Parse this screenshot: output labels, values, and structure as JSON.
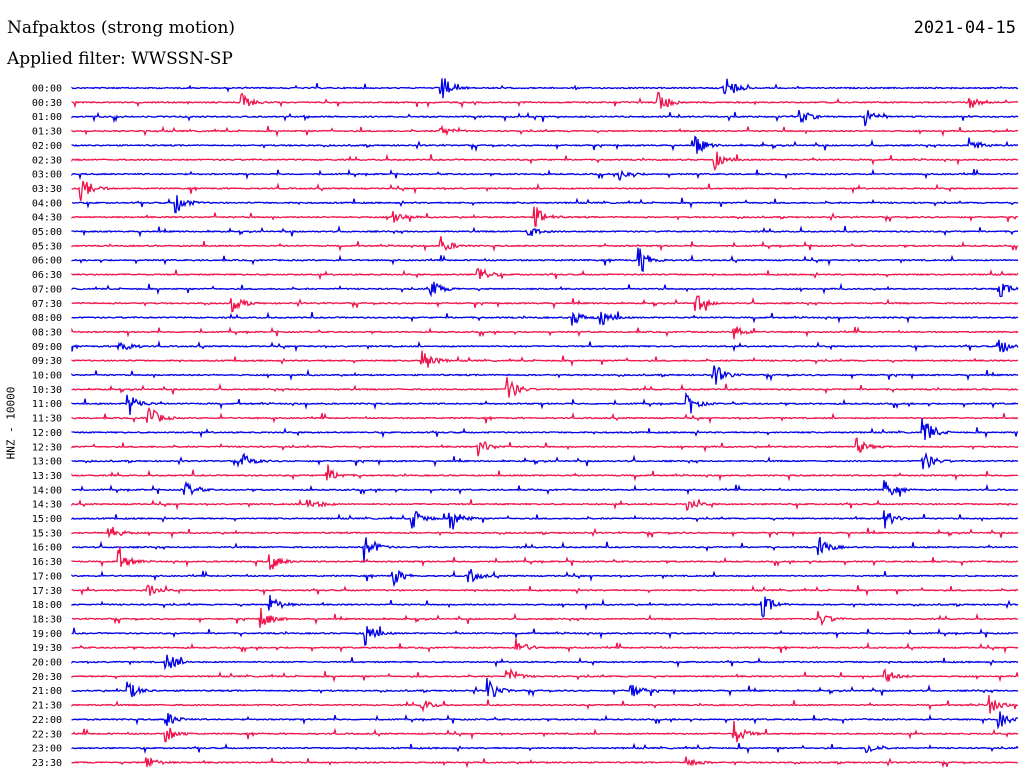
{
  "header": {
    "station_title": "Nafpaktos (strong motion)",
    "date": "2021-04-15",
    "filter_label": "Applied filter: WWSSN-SP"
  },
  "colors": {
    "trace_even": "#0000e6",
    "trace_odd": "#f0134a",
    "background": "#ffffff"
  },
  "chart_data": {
    "type": "line",
    "subtype": "helicorder",
    "ylabel": "HNZ - 10000",
    "tick_labels": [
      "00:00",
      "00:30",
      "01:00",
      "01:30",
      "02:00",
      "02:30",
      "03:00",
      "03:30",
      "04:00",
      "04:30",
      "05:00",
      "05:30",
      "06:00",
      "06:30",
      "07:00",
      "07:30",
      "08:00",
      "08:30",
      "09:00",
      "09:30",
      "10:00",
      "10:30",
      "11:00",
      "11:30",
      "12:00",
      "12:30",
      "13:00",
      "13:30",
      "14:00",
      "14:30",
      "15:00",
      "15:30",
      "16:00",
      "16:30",
      "17:00",
      "17:30",
      "18:00",
      "18:30",
      "19:00",
      "19:30",
      "20:00",
      "20:30",
      "21:00",
      "21:30",
      "22:00",
      "22:30",
      "23:00",
      "23:30"
    ],
    "trace_minutes": 30,
    "events": [
      {
        "row": 0,
        "t": 0.39,
        "amp": 1.0
      },
      {
        "row": 0,
        "t": 0.69,
        "amp": 0.9
      },
      {
        "row": 1,
        "t": 0.18,
        "amp": 0.5
      },
      {
        "row": 1,
        "t": 0.62,
        "amp": 0.8
      },
      {
        "row": 1,
        "t": 0.95,
        "amp": 0.4
      },
      {
        "row": 2,
        "t": 0.77,
        "amp": 0.5
      },
      {
        "row": 2,
        "t": 0.84,
        "amp": 0.6
      },
      {
        "row": 3,
        "t": 0.39,
        "amp": 0.4
      },
      {
        "row": 4,
        "t": 0.66,
        "amp": 0.6
      },
      {
        "row": 4,
        "t": 0.95,
        "amp": 0.5
      },
      {
        "row": 5,
        "t": 0.68,
        "amp": 0.6
      },
      {
        "row": 6,
        "t": 0.58,
        "amp": 0.4
      },
      {
        "row": 7,
        "t": 0.01,
        "amp": 0.9
      },
      {
        "row": 8,
        "t": 0.11,
        "amp": 0.7
      },
      {
        "row": 9,
        "t": 0.34,
        "amp": 0.5
      },
      {
        "row": 9,
        "t": 0.49,
        "amp": 0.7
      },
      {
        "row": 10,
        "t": 0.48,
        "amp": 0.5
      },
      {
        "row": 11,
        "t": 0.39,
        "amp": 0.6
      },
      {
        "row": 12,
        "t": 0.6,
        "amp": 1.0
      },
      {
        "row": 13,
        "t": 0.43,
        "amp": 0.6
      },
      {
        "row": 14,
        "t": 0.38,
        "amp": 0.6
      },
      {
        "row": 14,
        "t": 0.98,
        "amp": 0.6
      },
      {
        "row": 15,
        "t": 0.17,
        "amp": 0.5
      },
      {
        "row": 15,
        "t": 0.66,
        "amp": 0.6
      },
      {
        "row": 16,
        "t": 0.53,
        "amp": 0.5
      },
      {
        "row": 16,
        "t": 0.56,
        "amp": 0.6
      },
      {
        "row": 17,
        "t": 0.7,
        "amp": 0.5
      },
      {
        "row": 18,
        "t": 0.05,
        "amp": 0.6
      },
      {
        "row": 18,
        "t": 0.98,
        "amp": 0.6
      },
      {
        "row": 19,
        "t": 0.37,
        "amp": 0.9
      },
      {
        "row": 20,
        "t": 0.68,
        "amp": 0.7
      },
      {
        "row": 21,
        "t": 0.46,
        "amp": 0.9
      },
      {
        "row": 22,
        "t": 0.06,
        "amp": 0.8
      },
      {
        "row": 22,
        "t": 0.65,
        "amp": 0.7
      },
      {
        "row": 23,
        "t": 0.08,
        "amp": 1.0
      },
      {
        "row": 24,
        "t": 0.9,
        "amp": 1.0
      },
      {
        "row": 25,
        "t": 0.43,
        "amp": 0.6
      },
      {
        "row": 25,
        "t": 0.83,
        "amp": 0.5
      },
      {
        "row": 26,
        "t": 0.18,
        "amp": 0.5
      },
      {
        "row": 26,
        "t": 0.9,
        "amp": 0.7
      },
      {
        "row": 27,
        "t": 0.27,
        "amp": 0.5
      },
      {
        "row": 28,
        "t": 0.12,
        "amp": 0.5
      },
      {
        "row": 28,
        "t": 0.86,
        "amp": 0.6
      },
      {
        "row": 29,
        "t": 0.25,
        "amp": 0.6
      },
      {
        "row": 29,
        "t": 0.65,
        "amp": 0.5
      },
      {
        "row": 30,
        "t": 0.36,
        "amp": 0.8
      },
      {
        "row": 30,
        "t": 0.4,
        "amp": 0.9
      },
      {
        "row": 30,
        "t": 0.86,
        "amp": 0.6
      },
      {
        "row": 31,
        "t": 0.04,
        "amp": 0.5
      },
      {
        "row": 32,
        "t": 0.31,
        "amp": 1.0
      },
      {
        "row": 32,
        "t": 0.79,
        "amp": 0.7
      },
      {
        "row": 33,
        "t": 0.05,
        "amp": 0.7
      },
      {
        "row": 33,
        "t": 0.21,
        "amp": 0.6
      },
      {
        "row": 34,
        "t": 0.34,
        "amp": 0.6
      },
      {
        "row": 34,
        "t": 0.42,
        "amp": 0.5
      },
      {
        "row": 35,
        "t": 0.08,
        "amp": 0.5
      },
      {
        "row": 36,
        "t": 0.21,
        "amp": 0.6
      },
      {
        "row": 36,
        "t": 0.73,
        "amp": 0.8
      },
      {
        "row": 37,
        "t": 0.2,
        "amp": 0.7
      },
      {
        "row": 37,
        "t": 0.79,
        "amp": 0.5
      },
      {
        "row": 38,
        "t": 0.31,
        "amp": 0.9
      },
      {
        "row": 39,
        "t": 0.47,
        "amp": 0.6
      },
      {
        "row": 40,
        "t": 0.1,
        "amp": 0.7
      },
      {
        "row": 41,
        "t": 0.46,
        "amp": 0.6
      },
      {
        "row": 41,
        "t": 0.86,
        "amp": 0.5
      },
      {
        "row": 42,
        "t": 0.06,
        "amp": 0.6
      },
      {
        "row": 42,
        "t": 0.44,
        "amp": 0.8
      },
      {
        "row": 42,
        "t": 0.59,
        "amp": 0.6
      },
      {
        "row": 43,
        "t": 0.37,
        "amp": 0.4
      },
      {
        "row": 43,
        "t": 0.97,
        "amp": 0.6
      },
      {
        "row": 44,
        "t": 0.1,
        "amp": 0.5
      },
      {
        "row": 44,
        "t": 0.98,
        "amp": 0.6
      },
      {
        "row": 45,
        "t": 0.1,
        "amp": 0.5
      },
      {
        "row": 45,
        "t": 0.7,
        "amp": 0.8
      },
      {
        "row": 46,
        "t": 0.84,
        "amp": 0.4
      },
      {
        "row": 47,
        "t": 0.08,
        "amp": 0.4
      },
      {
        "row": 47,
        "t": 0.65,
        "amp": 0.4
      }
    ]
  }
}
